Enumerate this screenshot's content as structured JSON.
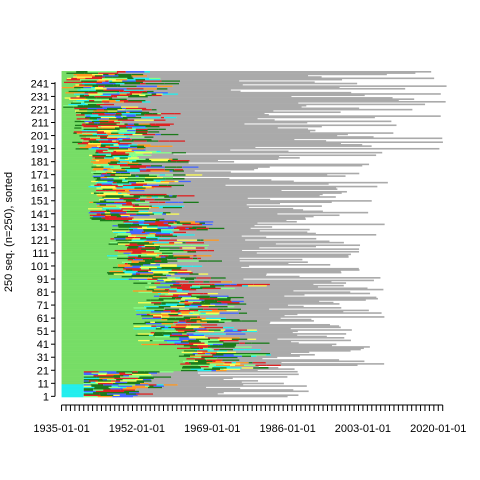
{
  "chart_data": {
    "type": "sequence-index-plot",
    "title": "",
    "xlabel": "",
    "ylabel": "250 seq. (n=250), sorted",
    "n_sequences": 250,
    "x_tick_labels": [
      "1935-01-01",
      "1952-01-01",
      "1969-01-01",
      "1986-01-01",
      "2003-01-01",
      "2020-01-01"
    ],
    "x_range": [
      "1934-06-01",
      "2022-06-01"
    ],
    "y_tick_labels": [
      "1",
      "11",
      "21",
      "31",
      "41",
      "51",
      "61",
      "71",
      "81",
      "91",
      "101",
      "111",
      "121",
      "131",
      "141",
      "151",
      "161",
      "171",
      "181",
      "191",
      "201",
      "211",
      "221",
      "231",
      "241"
    ],
    "colors": {
      "dominant": "#77dd66",
      "dark_green": "#1a7a1a",
      "gray": "#aaaaaa",
      "red": "#dd2222",
      "cyan": "#22eeee",
      "orange": "#ff9922",
      "yellow": "#ffff55",
      "blue": "#4466ff",
      "light_green": "#88ff88"
    },
    "sorted_sequences_approx": [
      {
        "seq_range": [
          1,
          10
        ],
        "main_state": "cyan",
        "start_year": 1935,
        "main_state_end_year": 1940,
        "end_year_range": [
          1967,
          1996
        ]
      },
      {
        "seq_range": [
          11,
          20
        ],
        "main_state": "dominant",
        "start_year": 1935,
        "main_state_end_year": 1940,
        "end_year_range": [
          1965,
          1995
        ]
      },
      {
        "seq_range": [
          21,
          40
        ],
        "main_state": "dominant",
        "start_year": 1935,
        "main_state_end_year_range": [
          1961,
          1966
        ],
        "end_year_range": [
          1978,
          2008
        ]
      },
      {
        "seq_range": [
          41,
          90
        ],
        "main_state": "dominant",
        "start_year": 1935,
        "main_state_end_year_range": [
          1951,
          1962
        ],
        "end_year_range": [
          1980,
          2010
        ]
      },
      {
        "seq_range": [
          91,
          135
        ],
        "main_state": "dominant",
        "start_year": 1935,
        "main_state_end_year_range": [
          1945,
          1951
        ],
        "end_year_range": [
          1975,
          2008
        ]
      },
      {
        "seq_range": [
          136,
          160
        ],
        "main_state": "dominant",
        "start_year": 1935,
        "main_state_end_year_range": [
          1941,
          1945
        ],
        "end_year_range": [
          1972,
          2005
        ]
      },
      {
        "seq_range": [
          161,
          190
        ],
        "main_state": "dominant",
        "start_year": 1935,
        "main_state_end_year_range": [
          1941,
          1943
        ],
        "end_year_range": [
          1960,
          2010
        ]
      },
      {
        "seq_range": [
          191,
          220
        ],
        "main_state": "dominant",
        "start_year": 1935,
        "main_state_end_year_range": [
          1937,
          1941
        ],
        "end_year_range": [
          1975,
          2022
        ]
      },
      {
        "seq_range": [
          221,
          250
        ],
        "main_state": "dominant",
        "start_year": 1935,
        "main_state_end_year_range": [
          1935,
          1940
        ],
        "end_year_range": [
          1972,
          2022
        ]
      }
    ]
  }
}
